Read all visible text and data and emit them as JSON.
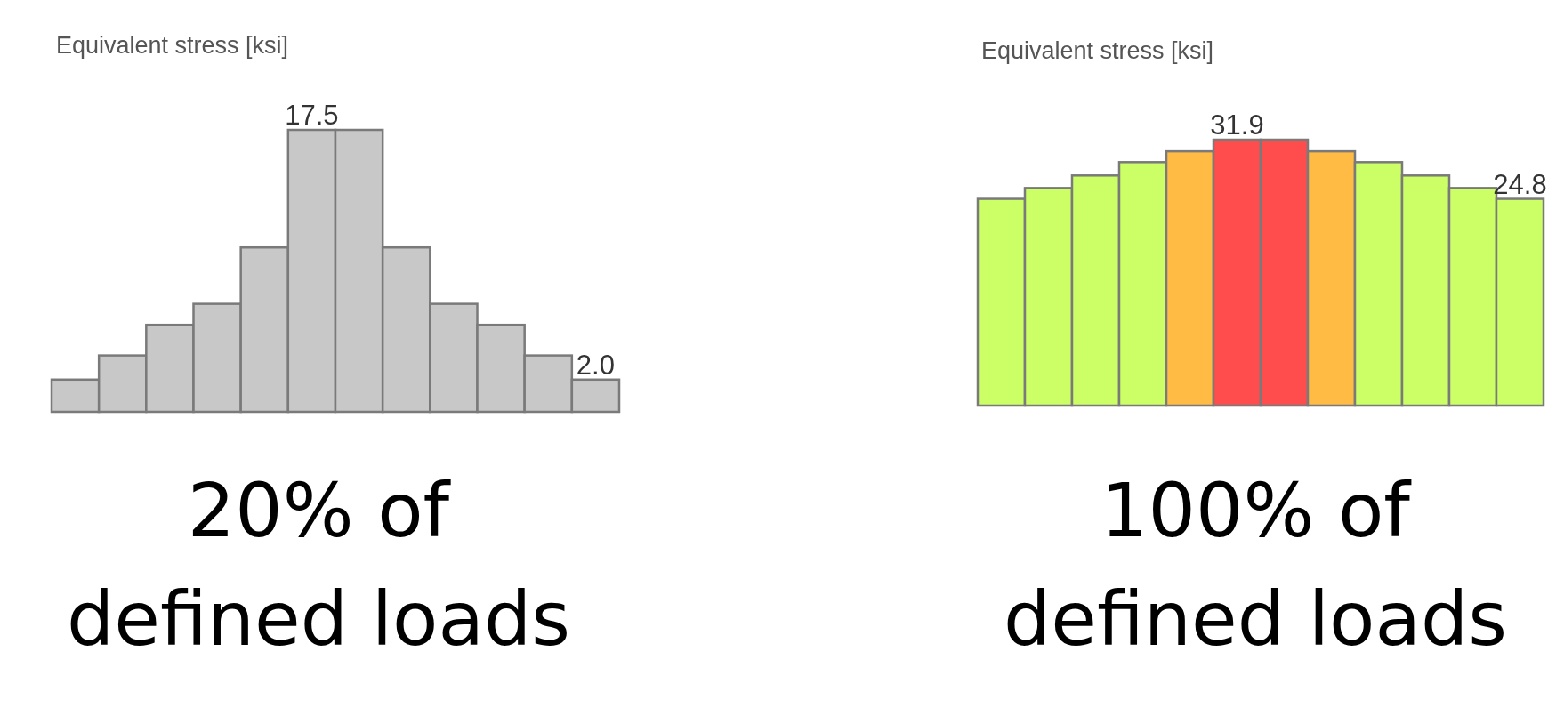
{
  "chart_data": [
    {
      "type": "bar",
      "title": "Equivalent stress [ksi]",
      "categories": [
        null,
        null,
        null,
        null,
        null,
        null,
        null,
        null,
        null,
        null,
        null,
        null
      ],
      "values": [
        2.0,
        3.5,
        5.4,
        6.7,
        10.2,
        17.5,
        17.5,
        10.2,
        6.7,
        5.4,
        3.5,
        2.0
      ],
      "ylim": [
        0,
        17.5
      ],
      "colors": [
        "#c8c8c8",
        "#c8c8c8",
        "#c8c8c8",
        "#c8c8c8",
        "#c8c8c8",
        "#c8c8c8",
        "#c8c8c8",
        "#c8c8c8",
        "#c8c8c8",
        "#c8c8c8",
        "#c8c8c8",
        "#c8c8c8"
      ],
      "value_labels": [
        null,
        null,
        null,
        null,
        null,
        "17.5",
        null,
        null,
        null,
        null,
        null,
        "2.0"
      ],
      "annotations": [
        "20% of defined loads"
      ]
    },
    {
      "type": "bar",
      "title": "Equivalent stress [ksi]",
      "categories": [
        null,
        null,
        null,
        null,
        null,
        null,
        null,
        null,
        null,
        null,
        null,
        null
      ],
      "values": [
        24.8,
        26.1,
        27.6,
        29.2,
        30.5,
        31.9,
        31.9,
        30.5,
        29.2,
        27.6,
        26.1,
        24.8
      ],
      "ylim": [
        0,
        31.9
      ],
      "colors": [
        "#ccff66",
        "#ccff66",
        "#ccff66",
        "#ccff66",
        "#ffbb44",
        "#ff4d4d",
        "#ff4d4d",
        "#ffbb44",
        "#ccff66",
        "#ccff66",
        "#ccff66",
        "#ccff66"
      ],
      "value_labels": [
        null,
        null,
        null,
        null,
        null,
        "31.9",
        null,
        null,
        null,
        null,
        null,
        "24.8"
      ],
      "annotations": [
        "100% of defined loads"
      ]
    }
  ]
}
